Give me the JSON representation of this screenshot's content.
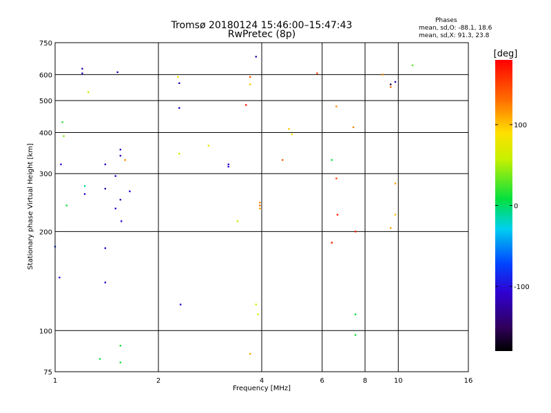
{
  "chart_data": {
    "type": "scatter",
    "title": "Tromsø 20180124 15:46:00–15:47:43",
    "subtitle": "RwPretec (8p)",
    "xlabel": "Frequency [MHz]",
    "ylabel": "Stationary phase Virtual Height [km]",
    "x_scale": "log",
    "y_scale": "log",
    "xlim": [
      1,
      16
    ],
    "ylim": [
      75,
      750
    ],
    "x_ticks": [
      1,
      2,
      4,
      6,
      8,
      10,
      16
    ],
    "x_ticklabels": [
      "1",
      "2",
      "4",
      "6",
      "8",
      "10",
      "16"
    ],
    "y_ticks": [
      75,
      100,
      200,
      300,
      400,
      500,
      600,
      750
    ],
    "y_ticklabels": [
      "75",
      "100",
      "200",
      "300",
      "400",
      "500",
      "600",
      "750"
    ],
    "grid": true,
    "stats": {
      "heading": "Phases",
      "line_o": "mean, sd,O: -88.1, 18.6",
      "line_x": "mean, sd,X:  91.3, 23.8"
    },
    "colorbar": {
      "label": "[deg]",
      "range": [
        -180,
        180
      ],
      "ticks": [
        100,
        0,
        -100
      ],
      "ticklabels": [
        "100",
        "0",
        "-100"
      ]
    },
    "series": [
      {
        "points": [
          [
            1.0,
            180,
            -80
          ],
          [
            1.03,
            145,
            -100
          ],
          [
            1.05,
            430,
            20
          ],
          [
            1.06,
            390,
            40
          ],
          [
            1.04,
            320,
            -100
          ],
          [
            1.08,
            240,
            10
          ],
          [
            1.2,
            625,
            -120
          ],
          [
            1.2,
            605,
            -110
          ],
          [
            1.25,
            530,
            60
          ],
          [
            1.22,
            275,
            -10
          ],
          [
            1.22,
            260,
            -110
          ],
          [
            1.4,
            320,
            -110
          ],
          [
            1.4,
            270,
            -120
          ],
          [
            1.4,
            178,
            -110
          ],
          [
            1.4,
            140,
            -110
          ],
          [
            1.35,
            82,
            10
          ],
          [
            1.52,
            610,
            -120
          ],
          [
            1.55,
            355,
            -110
          ],
          [
            1.55,
            340,
            -120
          ],
          [
            1.6,
            330,
            120
          ],
          [
            1.5,
            295,
            -110
          ],
          [
            1.55,
            250,
            -120
          ],
          [
            1.5,
            235,
            -100
          ],
          [
            1.56,
            215,
            -100
          ],
          [
            1.65,
            265,
            -110
          ],
          [
            1.55,
            90,
            10
          ],
          [
            1.55,
            80,
            10
          ],
          [
            2.28,
            590,
            90
          ],
          [
            2.3,
            565,
            -120
          ],
          [
            2.3,
            475,
            -120
          ],
          [
            2.3,
            345,
            60
          ],
          [
            2.8,
            365,
            80
          ],
          [
            3.2,
            315,
            -110
          ],
          [
            3.2,
            320,
            -110
          ],
          [
            2.32,
            120,
            -110
          ],
          [
            3.85,
            680,
            -120
          ],
          [
            3.7,
            590,
            140
          ],
          [
            3.7,
            560,
            100
          ],
          [
            3.6,
            485,
            170
          ],
          [
            3.95,
            245,
            120
          ],
          [
            3.95,
            240,
            130
          ],
          [
            3.95,
            235,
            110
          ],
          [
            3.4,
            215,
            60
          ],
          [
            3.85,
            120,
            60
          ],
          [
            3.9,
            112,
            60
          ],
          [
            3.7,
            85,
            110
          ],
          [
            4.6,
            330,
            140
          ],
          [
            4.8,
            410,
            100
          ],
          [
            4.9,
            395,
            80
          ],
          [
            5.8,
            605,
            150
          ],
          [
            6.4,
            330,
            10
          ],
          [
            6.6,
            290,
            150
          ],
          [
            6.65,
            225,
            170
          ],
          [
            6.4,
            185,
            170
          ],
          [
            7.4,
            415,
            120
          ],
          [
            7.5,
            200,
            170
          ],
          [
            7.5,
            112,
            10
          ],
          [
            7.5,
            97,
            10
          ],
          [
            6.6,
            480,
            120
          ],
          [
            9.0,
            600,
            120
          ],
          [
            9.5,
            560,
            -160
          ],
          [
            9.5,
            550,
            130
          ],
          [
            9.8,
            570,
            -120
          ],
          [
            11.0,
            640,
            30
          ],
          [
            9.5,
            205,
            110
          ],
          [
            9.8,
            280,
            110
          ],
          [
            9.8,
            225,
            100
          ]
        ]
      }
    ]
  }
}
